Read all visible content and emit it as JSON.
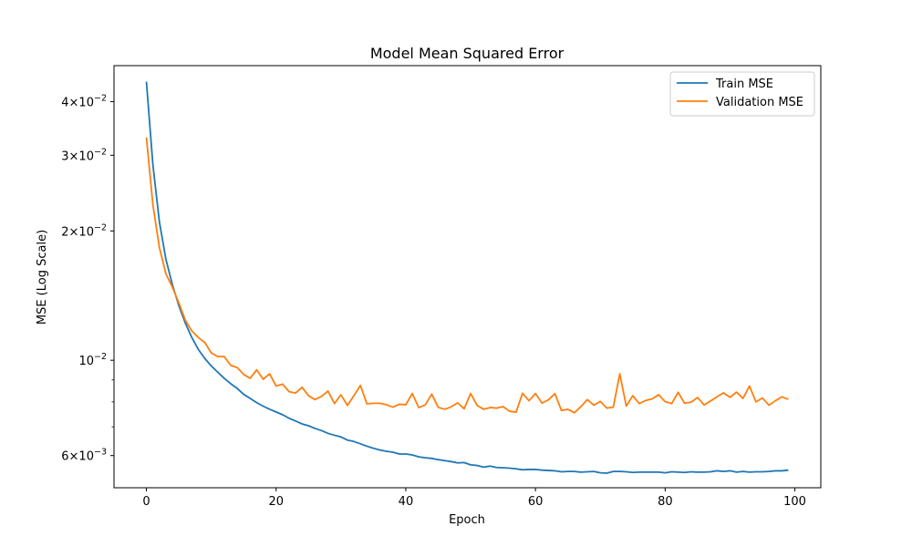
{
  "chart_data": {
    "type": "line",
    "title": "Model Mean Squared Error",
    "xlabel": "Epoch",
    "ylabel": "MSE (Log Scale)",
    "yscale": "log",
    "xlim": [
      -5,
      104
    ],
    "ylim": [
      0.00505,
      0.0485
    ],
    "xticks": [
      0,
      20,
      40,
      60,
      80,
      100
    ],
    "xtick_labels": [
      "0",
      "20",
      "40",
      "60",
      "80",
      "100"
    ],
    "yticks": [
      0.006,
      0.01,
      0.02,
      0.03,
      0.04
    ],
    "ytick_labels": [
      {
        "mant": "6",
        "exp": "−3"
      },
      {
        "mant": "",
        "exp": "−2"
      },
      {
        "mant": "2",
        "exp": "−2"
      },
      {
        "mant": "3",
        "exp": "−2"
      },
      {
        "mant": "4",
        "exp": "−2"
      }
    ],
    "yminor_ticks": [
      0.007,
      0.008,
      0.009
    ],
    "grid": false,
    "legend_position": "upper-right",
    "series": [
      {
        "name": "Train MSE",
        "color": "#1f77b4",
        "x": [
          0,
          1,
          2,
          3,
          4,
          5,
          6,
          7,
          8,
          9,
          10,
          11,
          12,
          13,
          14,
          15,
          16,
          17,
          18,
          19,
          20,
          21,
          22,
          23,
          24,
          25,
          26,
          27,
          28,
          29,
          30,
          31,
          32,
          33,
          34,
          35,
          36,
          37,
          38,
          39,
          40,
          41,
          42,
          43,
          44,
          45,
          46,
          47,
          48,
          49,
          50,
          51,
          52,
          53,
          54,
          55,
          56,
          57,
          58,
          59,
          60,
          61,
          62,
          63,
          64,
          65,
          66,
          67,
          68,
          69,
          70,
          71,
          72,
          73,
          74,
          75,
          76,
          77,
          78,
          79,
          80,
          81,
          82,
          83,
          84,
          85,
          86,
          87,
          88,
          89,
          90,
          91,
          92,
          93,
          94,
          95,
          96,
          97,
          98,
          99
        ],
        "values": [
          0.0445,
          0.0285,
          0.021,
          0.0172,
          0.015,
          0.0134,
          0.0122,
          0.0113,
          0.0106,
          0.0101,
          0.0097,
          0.00938,
          0.00908,
          0.00882,
          0.0086,
          0.00833,
          0.00815,
          0.00797,
          0.00782,
          0.00769,
          0.00758,
          0.00747,
          0.00733,
          0.00722,
          0.00711,
          0.00704,
          0.00694,
          0.00686,
          0.00676,
          0.00669,
          0.00663,
          0.00652,
          0.00647,
          0.00639,
          0.00631,
          0.00624,
          0.00618,
          0.00614,
          0.00611,
          0.00605,
          0.00605,
          0.00602,
          0.00596,
          0.00593,
          0.00591,
          0.00587,
          0.00584,
          0.00581,
          0.00577,
          0.00578,
          0.00571,
          0.00569,
          0.00564,
          0.00567,
          0.00563,
          0.00562,
          0.00561,
          0.00559,
          0.00556,
          0.00557,
          0.00557,
          0.00555,
          0.00554,
          0.00553,
          0.0055,
          0.00551,
          0.00551,
          0.00549,
          0.0055,
          0.00551,
          0.00547,
          0.00546,
          0.00551,
          0.00551,
          0.0055,
          0.00548,
          0.00549,
          0.00549,
          0.00549,
          0.00549,
          0.00547,
          0.0055,
          0.00549,
          0.00548,
          0.0055,
          0.00549,
          0.00549,
          0.0055,
          0.00553,
          0.00551,
          0.00553,
          0.00549,
          0.00551,
          0.00549,
          0.0055,
          0.0055,
          0.00551,
          0.00553,
          0.00553,
          0.00555
        ]
      },
      {
        "name": "Validation MSE",
        "color": "#ff7f0e",
        "x": [
          0,
          1,
          2,
          3,
          4,
          5,
          6,
          7,
          8,
          9,
          10,
          11,
          12,
          13,
          14,
          15,
          16,
          17,
          18,
          19,
          20,
          21,
          22,
          23,
          24,
          25,
          26,
          27,
          28,
          29,
          30,
          31,
          32,
          33,
          34,
          35,
          36,
          37,
          38,
          39,
          40,
          41,
          42,
          43,
          44,
          45,
          46,
          47,
          48,
          49,
          50,
          51,
          52,
          53,
          54,
          55,
          56,
          57,
          58,
          59,
          60,
          61,
          62,
          63,
          64,
          65,
          66,
          67,
          68,
          69,
          70,
          71,
          72,
          73,
          74,
          75,
          76,
          77,
          78,
          79,
          80,
          81,
          82,
          83,
          84,
          85,
          86,
          87,
          88,
          89,
          90,
          91,
          92,
          93,
          94,
          95,
          96,
          97,
          98,
          99
        ],
        "values": [
          0.033,
          0.023,
          0.0183,
          0.0159,
          0.0148,
          0.0136,
          0.0124,
          0.0117,
          0.0113,
          0.011,
          0.0104,
          0.0102,
          0.0102,
          0.00973,
          0.00962,
          0.00927,
          0.00908,
          0.0095,
          0.00903,
          0.0093,
          0.00871,
          0.0088,
          0.00845,
          0.00839,
          0.00865,
          0.00827,
          0.0081,
          0.00824,
          0.00848,
          0.00793,
          0.00831,
          0.00785,
          0.00827,
          0.00874,
          0.00792,
          0.00794,
          0.00794,
          0.00788,
          0.00778,
          0.0079,
          0.00788,
          0.00837,
          0.00776,
          0.00787,
          0.00834,
          0.00777,
          0.00769,
          0.00779,
          0.00796,
          0.00771,
          0.00837,
          0.00785,
          0.00769,
          0.00776,
          0.00774,
          0.0078,
          0.00761,
          0.00757,
          0.00838,
          0.00805,
          0.00837,
          0.00795,
          0.00809,
          0.00836,
          0.00764,
          0.00769,
          0.00755,
          0.0078,
          0.0081,
          0.00786,
          0.00802,
          0.00774,
          0.00778,
          0.0093,
          0.00782,
          0.00827,
          0.00793,
          0.00806,
          0.00813,
          0.00831,
          0.00801,
          0.00793,
          0.00842,
          0.00794,
          0.00799,
          0.00819,
          0.00787,
          0.00804,
          0.00822,
          0.0084,
          0.0082,
          0.00843,
          0.00815,
          0.00871,
          0.008,
          0.00817,
          0.00786,
          0.00805,
          0.00822,
          0.00811
        ]
      }
    ]
  }
}
